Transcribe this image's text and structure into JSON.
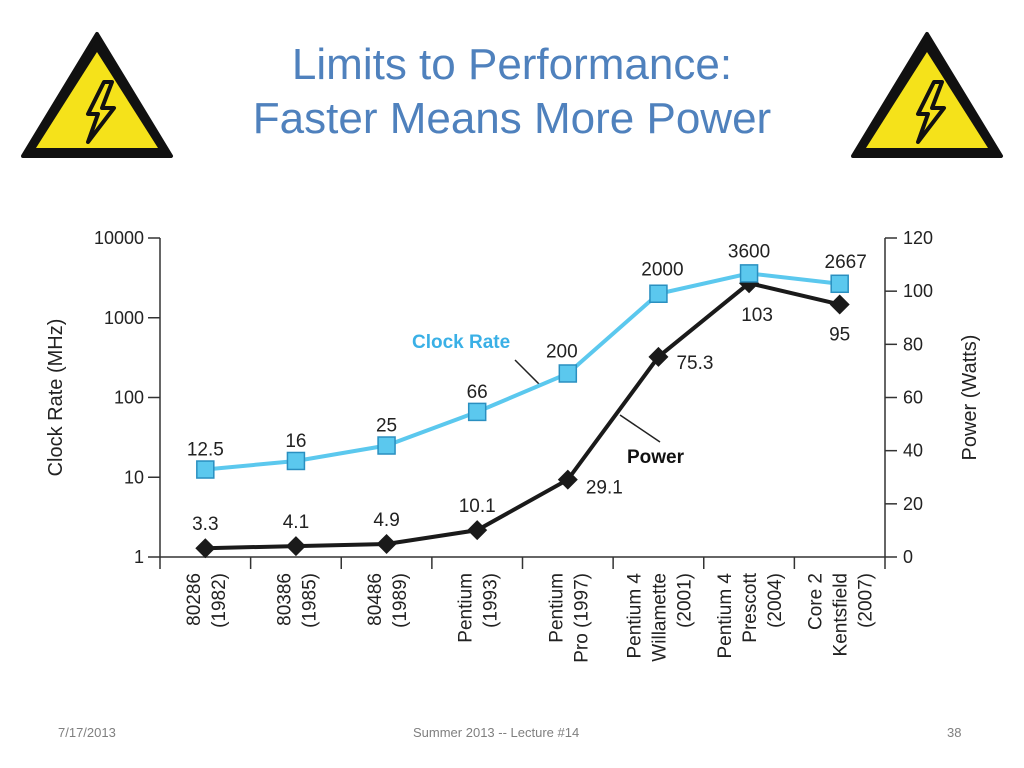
{
  "slide": {
    "title_line1": "Limits to Performance:",
    "title_line2": "Faster Means More Power",
    "icon": "high-voltage-warning-icon",
    "icon_colors": {
      "fill": "#f5e21a",
      "stroke": "#111111"
    },
    "title_color": "#4f81bd"
  },
  "footer": {
    "date": "7/17/2013",
    "center": "Summer 2013 -- Lecture #14",
    "page": "38"
  },
  "chart_data": {
    "type": "line",
    "title": "",
    "categories": [
      [
        "80286",
        "(1982)"
      ],
      [
        "80386",
        "(1985)"
      ],
      [
        "80486",
        "(1989)"
      ],
      [
        "Pentium",
        "(1993)"
      ],
      [
        "Pentium",
        "Pro (1997)"
      ],
      [
        "Pentium 4",
        "Willamette",
        "(2001)"
      ],
      [
        "Pentium 4",
        "Prescott",
        "(2004)"
      ],
      [
        "Core 2",
        "Kentsfield",
        "(2007)"
      ]
    ],
    "ylabel_left": "Clock Rate (MHz)",
    "ylabel_right": "Power (Watts)",
    "y_left": {
      "scale": "log",
      "range": [
        1,
        10000
      ],
      "ticks": [
        "1",
        "10",
        "100",
        "1000",
        "10000"
      ]
    },
    "y_right": {
      "scale": "linear",
      "range": [
        0,
        120
      ],
      "ticks": [
        "0",
        "20",
        "40",
        "60",
        "80",
        "100",
        "120"
      ]
    },
    "grid": false,
    "series": [
      {
        "name": "Clock Rate",
        "axis": "left",
        "marker": "square",
        "color": "#5bc8ee",
        "marker_fill": "#5bc8ee",
        "values": [
          12.5,
          16,
          25,
          66,
          200,
          2000,
          3600,
          2667
        ],
        "labels": [
          "12.5",
          "16",
          "25",
          "66",
          "200",
          "2000",
          "3600",
          "2667"
        ]
      },
      {
        "name": "Power",
        "axis": "right",
        "marker": "diamond",
        "color": "#1a1a1a",
        "values": [
          3.3,
          4.1,
          4.9,
          10.1,
          29.1,
          75.3,
          103,
          95
        ],
        "labels": [
          "3.3",
          "4.1",
          "4.9",
          "10.1",
          "29.1",
          "75.3",
          "103",
          "95"
        ]
      }
    ]
  }
}
